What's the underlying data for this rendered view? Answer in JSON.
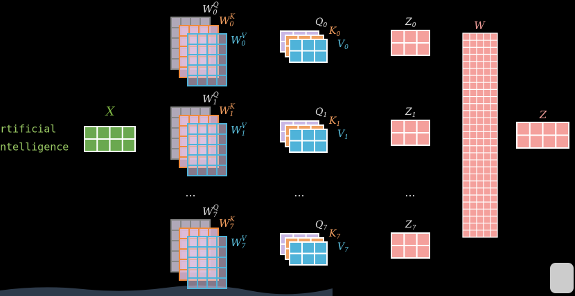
{
  "input": {
    "lines": [
      "rtificial",
      "ntelligence"
    ],
    "label": "X"
  },
  "heads": [
    {
      "wq": {
        "base": "W",
        "sub": "0",
        "sup": "Q"
      },
      "wk": {
        "base": "W",
        "sub": "0",
        "sup": "K"
      },
      "wv": {
        "base": "W",
        "sub": "0",
        "sup": "V"
      },
      "q": {
        "base": "Q",
        "sub": "0"
      },
      "k": {
        "base": "K",
        "sub": "0"
      },
      "v": {
        "base": "V",
        "sub": "0"
      },
      "z": {
        "base": "Z",
        "sub": "0"
      }
    },
    {
      "wq": {
        "base": "W",
        "sub": "1",
        "sup": "Q"
      },
      "wk": {
        "base": "W",
        "sub": "1",
        "sup": "K"
      },
      "wv": {
        "base": "W",
        "sub": "1",
        "sup": "V"
      },
      "q": {
        "base": "Q",
        "sub": "1"
      },
      "k": {
        "base": "K",
        "sub": "1"
      },
      "v": {
        "base": "V",
        "sub": "1"
      },
      "z": {
        "base": "Z",
        "sub": "1"
      }
    },
    {
      "wq": {
        "base": "W",
        "sub": "7",
        "sup": "Q"
      },
      "wk": {
        "base": "W",
        "sub": "7",
        "sup": "K"
      },
      "wv": {
        "base": "W",
        "sub": "7",
        "sup": "V"
      },
      "q": {
        "base": "Q",
        "sub": "7"
      },
      "k": {
        "base": "K",
        "sub": "7"
      },
      "v": {
        "base": "V",
        "sub": "7"
      },
      "z": {
        "base": "Z",
        "sub": "7"
      }
    }
  ],
  "ellipsis": "···",
  "output": {
    "w": "W",
    "z": "Z"
  }
}
